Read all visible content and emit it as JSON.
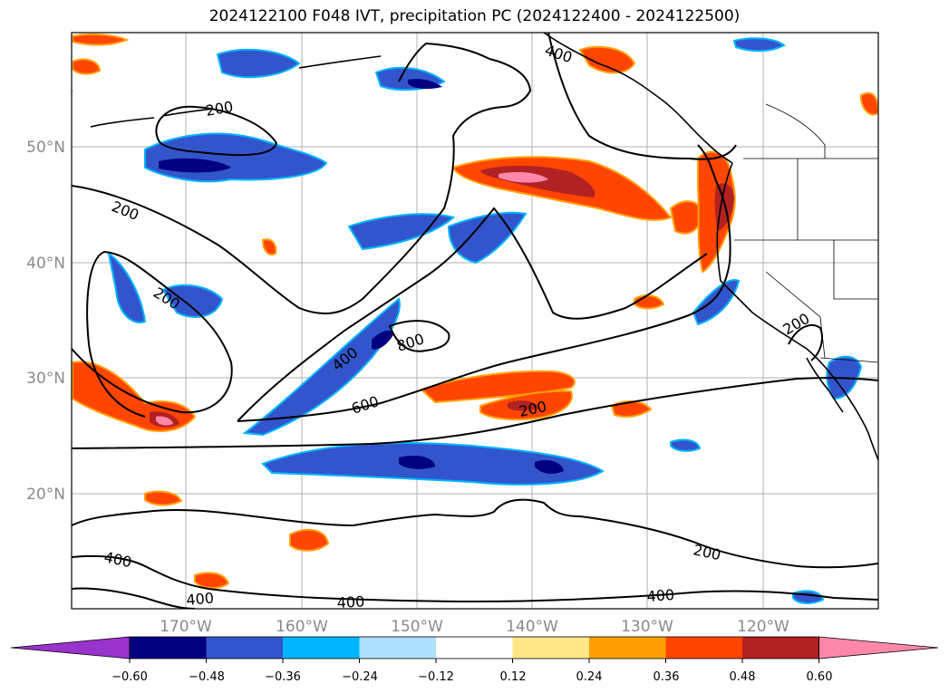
{
  "title": "2024122100 F048 IVT, precipitation PC (2024122400 - 2024122500)",
  "map": {
    "lat_labels": [
      "50°N",
      "40°N",
      "30°N",
      "20°N"
    ],
    "lon_labels": [
      "170°W",
      "160°W",
      "150°W",
      "140°W",
      "130°W",
      "120°W"
    ],
    "gridlines": true
  },
  "contour_labels": [
    "200",
    "200",
    "200",
    "400",
    "400",
    "800",
    "600",
    "200",
    "200",
    "200",
    "400",
    "400",
    "400",
    "400"
  ],
  "colorbar": {
    "ticks": [
      "−0.60",
      "−0.48",
      "−0.36",
      "−0.24",
      "−0.12",
      "0.12",
      "0.24",
      "0.36",
      "0.48",
      "0.60"
    ],
    "colors": [
      "#9a33cc",
      "#000080",
      "#3355cc",
      "#00b4ff",
      "#aee0ff",
      "#ffffff",
      "#ffe88a",
      "#ffa000",
      "#ff4500",
      "#b22222",
      "#ff88aa"
    ],
    "extend": "both"
  }
}
